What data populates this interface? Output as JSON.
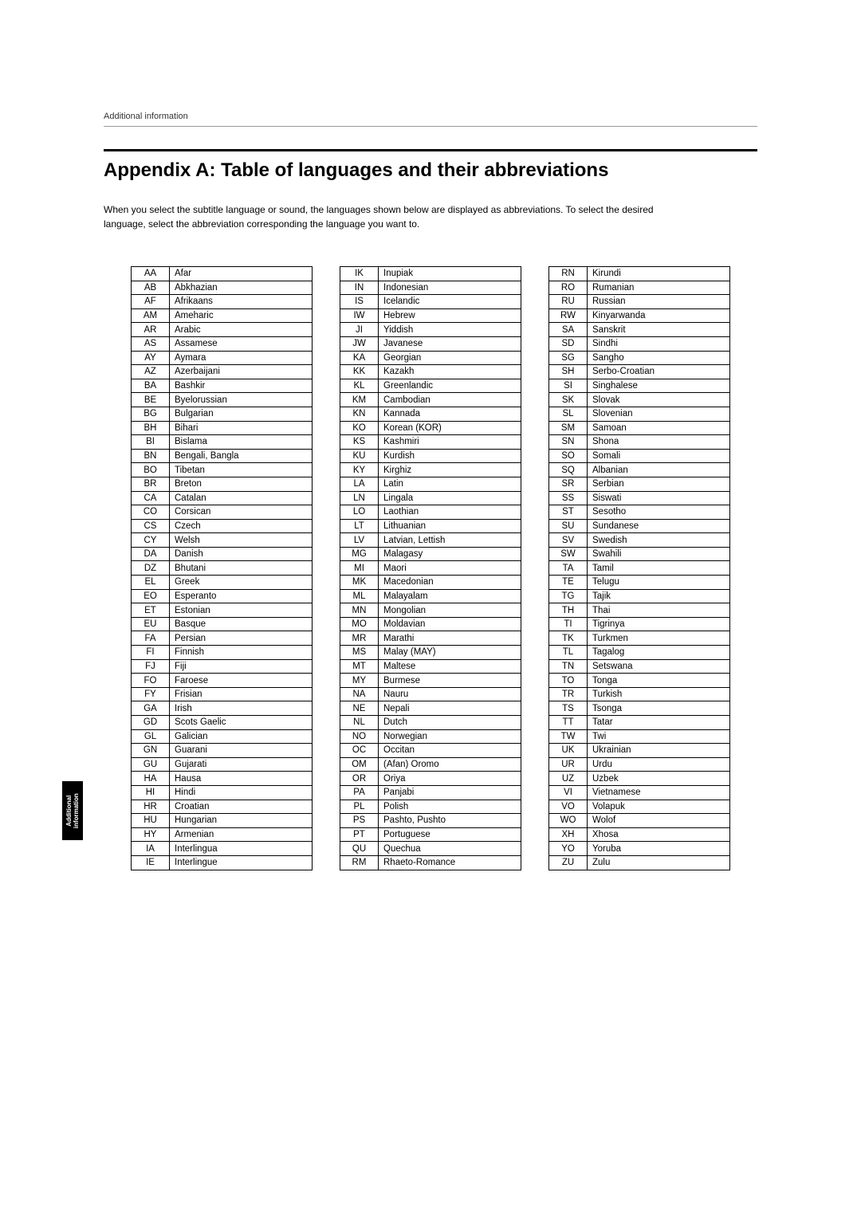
{
  "section_label": "Additional information",
  "title": "Appendix A: Table of languages and their abbreviations",
  "intro": "When you select the subtitle language or sound, the languages shown below are displayed as abbreviations.  To select the desired language, select the abbreviation corresponding the language you want to.",
  "side_tab_line1": "Additional",
  "side_tab_line2": "information",
  "columns": [
    {
      "rows": [
        [
          "AA",
          "Afar"
        ],
        [
          "AB",
          "Abkhazian"
        ],
        [
          "AF",
          "Afrikaans"
        ],
        [
          "AM",
          "Ameharic"
        ],
        [
          "AR",
          "Arabic"
        ],
        [
          "AS",
          "Assamese"
        ],
        [
          "AY",
          "Aymara"
        ],
        [
          "AZ",
          "Azerbaijani"
        ],
        [
          "BA",
          "Bashkir"
        ],
        [
          "BE",
          "Byelorussian"
        ],
        [
          "BG",
          "Bulgarian"
        ],
        [
          "BH",
          "Bihari"
        ],
        [
          "BI",
          "Bislama"
        ],
        [
          "BN",
          "Bengali, Bangla"
        ],
        [
          "BO",
          "Tibetan"
        ],
        [
          "BR",
          "Breton"
        ],
        [
          "CA",
          "Catalan"
        ],
        [
          "CO",
          "Corsican"
        ],
        [
          "CS",
          "Czech"
        ],
        [
          "CY",
          "Welsh"
        ],
        [
          "DA",
          "Danish"
        ],
        [
          "DZ",
          "Bhutani"
        ],
        [
          "EL",
          "Greek"
        ],
        [
          "EO",
          "Esperanto"
        ],
        [
          "ET",
          "Estonian"
        ],
        [
          "EU",
          "Basque"
        ],
        [
          "FA",
          "Persian"
        ],
        [
          "FI",
          "Finnish"
        ],
        [
          "FJ",
          "Fiji"
        ],
        [
          "FO",
          "Faroese"
        ],
        [
          "FY",
          "Frisian"
        ],
        [
          "GA",
          "Irish"
        ],
        [
          "GD",
          "Scots Gaelic"
        ],
        [
          "GL",
          "Galician"
        ],
        [
          "GN",
          "Guarani"
        ],
        [
          "GU",
          "Gujarati"
        ],
        [
          "HA",
          "Hausa"
        ],
        [
          "HI",
          "Hindi"
        ],
        [
          "HR",
          "Croatian"
        ],
        [
          "HU",
          "Hungarian"
        ],
        [
          "HY",
          "Armenian"
        ],
        [
          "IA",
          "Interlingua"
        ],
        [
          "IE",
          "Interlingue"
        ]
      ]
    },
    {
      "rows": [
        [
          "IK",
          "Inupiak"
        ],
        [
          "IN",
          "Indonesian"
        ],
        [
          "IS",
          "Icelandic"
        ],
        [
          "IW",
          "Hebrew"
        ],
        [
          "JI",
          "Yiddish"
        ],
        [
          "JW",
          "Javanese"
        ],
        [
          "KA",
          "Georgian"
        ],
        [
          "KK",
          "Kazakh"
        ],
        [
          "KL",
          "Greenlandic"
        ],
        [
          "KM",
          "Cambodian"
        ],
        [
          "KN",
          "Kannada"
        ],
        [
          "KO",
          "Korean (KOR)"
        ],
        [
          "KS",
          "Kashmiri"
        ],
        [
          "KU",
          "Kurdish"
        ],
        [
          "KY",
          "Kirghiz"
        ],
        [
          "LA",
          "Latin"
        ],
        [
          "LN",
          "Lingala"
        ],
        [
          "LO",
          "Laothian"
        ],
        [
          "LT",
          "Lithuanian"
        ],
        [
          "LV",
          "Latvian, Lettish"
        ],
        [
          "MG",
          "Malagasy"
        ],
        [
          "MI",
          "Maori"
        ],
        [
          "MK",
          "Macedonian"
        ],
        [
          "ML",
          "Malayalam"
        ],
        [
          "MN",
          "Mongolian"
        ],
        [
          "MO",
          "Moldavian"
        ],
        [
          "MR",
          "Marathi"
        ],
        [
          "MS",
          "Malay (MAY)"
        ],
        [
          "MT",
          "Maltese"
        ],
        [
          "MY",
          "Burmese"
        ],
        [
          "NA",
          "Nauru"
        ],
        [
          "NE",
          "Nepali"
        ],
        [
          "NL",
          "Dutch"
        ],
        [
          "NO",
          "Norwegian"
        ],
        [
          "OC",
          "Occitan"
        ],
        [
          "OM",
          "(Afan) Oromo"
        ],
        [
          "OR",
          "Oriya"
        ],
        [
          "PA",
          "Panjabi"
        ],
        [
          "PL",
          "Polish"
        ],
        [
          "PS",
          "Pashto, Pushto"
        ],
        [
          "PT",
          "Portuguese"
        ],
        [
          "QU",
          "Quechua"
        ],
        [
          "RM",
          "Rhaeto-Romance"
        ]
      ]
    },
    {
      "rows": [
        [
          "RN",
          "Kirundi"
        ],
        [
          "RO",
          "Rumanian"
        ],
        [
          "RU",
          "Russian"
        ],
        [
          "RW",
          "Kinyarwanda"
        ],
        [
          "SA",
          "Sanskrit"
        ],
        [
          "SD",
          "Sindhi"
        ],
        [
          "SG",
          "Sangho"
        ],
        [
          "SH",
          "Serbo-Croatian"
        ],
        [
          "SI",
          "Singhalese"
        ],
        [
          "SK",
          "Slovak"
        ],
        [
          "SL",
          "Slovenian"
        ],
        [
          "SM",
          "Samoan"
        ],
        [
          "SN",
          "Shona"
        ],
        [
          "SO",
          "Somali"
        ],
        [
          "SQ",
          "Albanian"
        ],
        [
          "SR",
          "Serbian"
        ],
        [
          "SS",
          "Siswati"
        ],
        [
          "ST",
          "Sesotho"
        ],
        [
          "SU",
          "Sundanese"
        ],
        [
          "SV",
          "Swedish"
        ],
        [
          "SW",
          "Swahili"
        ],
        [
          "TA",
          "Tamil"
        ],
        [
          "TE",
          "Telugu"
        ],
        [
          "TG",
          "Tajik"
        ],
        [
          "TH",
          "Thai"
        ],
        [
          "TI",
          "Tigrinya"
        ],
        [
          "TK",
          "Turkmen"
        ],
        [
          "TL",
          "Tagalog"
        ],
        [
          "TN",
          "Setswana"
        ],
        [
          "TO",
          "Tonga"
        ],
        [
          "TR",
          "Turkish"
        ],
        [
          "TS",
          "Tsonga"
        ],
        [
          "TT",
          "Tatar"
        ],
        [
          "TW",
          "Twi"
        ],
        [
          "UK",
          "Ukrainian"
        ],
        [
          "UR",
          "Urdu"
        ],
        [
          "UZ",
          "Uzbek"
        ],
        [
          "VI",
          "Vietnamese"
        ],
        [
          "VO",
          "Volapuk"
        ],
        [
          "WO",
          "Wolof"
        ],
        [
          "XH",
          "Xhosa"
        ],
        [
          "YO",
          "Yoruba"
        ],
        [
          "ZU",
          "Zulu"
        ]
      ]
    }
  ]
}
